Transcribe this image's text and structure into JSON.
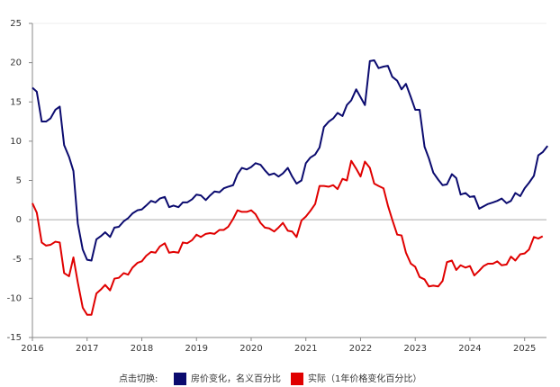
{
  "chart_data": {
    "type": "line",
    "legend_title": "点击切换:",
    "x": [
      2016,
      2016.08,
      2016.17,
      2016.25,
      2016.33,
      2016.42,
      2016.5,
      2016.58,
      2016.67,
      2016.75,
      2016.83,
      2016.92,
      2017,
      2017.08,
      2017.17,
      2017.25,
      2017.33,
      2017.42,
      2017.5,
      2017.58,
      2017.67,
      2017.75,
      2017.83,
      2017.92,
      2018,
      2018.08,
      2018.17,
      2018.25,
      2018.33,
      2018.42,
      2018.5,
      2018.58,
      2018.67,
      2018.75,
      2018.83,
      2018.92,
      2019,
      2019.08,
      2019.17,
      2019.25,
      2019.33,
      2019.42,
      2019.5,
      2019.58,
      2019.67,
      2019.75,
      2019.83,
      2019.92,
      2020,
      2020.08,
      2020.17,
      2020.25,
      2020.33,
      2020.42,
      2020.5,
      2020.58,
      2020.67,
      2020.75,
      2020.83,
      2020.92,
      2021,
      2021.08,
      2021.17,
      2021.25,
      2021.33,
      2021.42,
      2021.5,
      2021.58,
      2021.67,
      2021.75,
      2021.83,
      2021.92,
      2022,
      2022.08,
      2022.17,
      2022.25,
      2022.33,
      2022.42,
      2022.5,
      2022.58,
      2022.67,
      2022.75,
      2022.83,
      2022.92,
      2023,
      2023.08,
      2023.17,
      2023.25,
      2023.33,
      2023.42,
      2023.5,
      2023.58,
      2023.67,
      2023.75,
      2023.83,
      2023.92,
      2024,
      2024.08,
      2024.17,
      2024.25,
      2024.33,
      2024.42,
      2024.5,
      2024.58,
      2024.67,
      2024.75,
      2024.83,
      2024.92,
      2025,
      2025.08,
      2025.17,
      2025.25,
      2025.33,
      2025.42
    ],
    "series": [
      {
        "name": "房价变化，名义百分比",
        "color": "#0b0b6f",
        "values": [
          16.8,
          16.3,
          12.5,
          12.5,
          12.9,
          14.0,
          14.4,
          9.5,
          8.0,
          6.2,
          -0.5,
          -3.8,
          -5.1,
          -5.2,
          -2.5,
          -2.1,
          -1.6,
          -2.2,
          -1.0,
          -0.9,
          -0.2,
          0.2,
          0.8,
          1.2,
          1.3,
          1.8,
          2.4,
          2.2,
          2.7,
          2.9,
          1.6,
          1.8,
          1.6,
          2.2,
          2.2,
          2.6,
          3.2,
          3.1,
          2.5,
          3.1,
          3.6,
          3.5,
          4.0,
          4.2,
          4.4,
          5.8,
          6.6,
          6.4,
          6.7,
          7.2,
          7.0,
          6.3,
          5.7,
          5.9,
          5.5,
          5.9,
          6.6,
          5.5,
          4.6,
          5.0,
          7.2,
          7.9,
          8.3,
          9.2,
          11.8,
          12.5,
          12.9,
          13.6,
          13.2,
          14.6,
          15.2,
          16.6,
          15.6,
          14.6,
          20.2,
          20.3,
          19.3,
          19.5,
          19.6,
          18.2,
          17.7,
          16.6,
          17.3,
          15.6,
          14.0,
          14.0,
          9.3,
          7.8,
          6.0,
          5.1,
          4.4,
          4.5,
          5.8,
          5.3,
          3.2,
          3.4,
          2.9,
          3.0,
          1.4,
          1.7,
          2.0,
          2.2,
          2.4,
          2.7,
          2.1,
          2.4,
          3.4,
          3.0,
          4.0,
          4.7,
          5.6,
          8.2,
          8.6,
          9.4
        ]
      },
      {
        "name": "实际（1年价格变化百分比）",
        "color": "#e00000",
        "values": [
          2.1,
          0.9,
          -2.9,
          -3.3,
          -3.2,
          -2.8,
          -2.9,
          -6.8,
          -7.2,
          -4.8,
          -8.0,
          -11.2,
          -12.1,
          -12.1,
          -9.4,
          -8.9,
          -8.3,
          -9.0,
          -7.5,
          -7.4,
          -6.8,
          -7.0,
          -6.1,
          -5.5,
          -5.3,
          -4.6,
          -4.1,
          -4.2,
          -3.4,
          -3.0,
          -4.2,
          -4.1,
          -4.2,
          -2.9,
          -3.0,
          -2.6,
          -1.9,
          -2.2,
          -1.8,
          -1.7,
          -1.8,
          -1.3,
          -1.3,
          -0.9,
          0.1,
          1.2,
          1.0,
          1.0,
          1.2,
          0.7,
          -0.4,
          -1.0,
          -1.1,
          -1.5,
          -1.0,
          -0.4,
          -1.4,
          -1.5,
          -2.2,
          -0.1,
          0.4,
          1.1,
          2.0,
          4.3,
          4.3,
          4.2,
          4.4,
          3.9,
          5.2,
          5.0,
          7.5,
          6.5,
          5.5,
          7.4,
          6.6,
          4.6,
          4.3,
          4.0,
          1.8,
          0.0,
          -1.9,
          -2.0,
          -4.2,
          -5.6,
          -6.0,
          -7.3,
          -7.6,
          -8.5,
          -8.4,
          -8.5,
          -7.8,
          -5.4,
          -5.2,
          -6.4,
          -5.8,
          -6.1,
          -5.9,
          -7.1,
          -6.5,
          -5.9,
          -5.6,
          -5.6,
          -5.3,
          -5.8,
          -5.7,
          -4.7,
          -5.2,
          -4.4,
          -4.3,
          -3.8,
          -2.2,
          -2.4,
          -2.1,
          null
        ]
      }
    ],
    "xlim": [
      2016,
      2025.4
    ],
    "xticks": [
      2016,
      2017,
      2018,
      2019,
      2020,
      2021,
      2022,
      2023,
      2024,
      2025
    ],
    "ylim": [
      -15,
      25
    ],
    "yticks": [
      -15,
      -10,
      -5,
      0,
      5,
      10,
      15,
      20,
      25
    ],
    "zeroline": true
  }
}
